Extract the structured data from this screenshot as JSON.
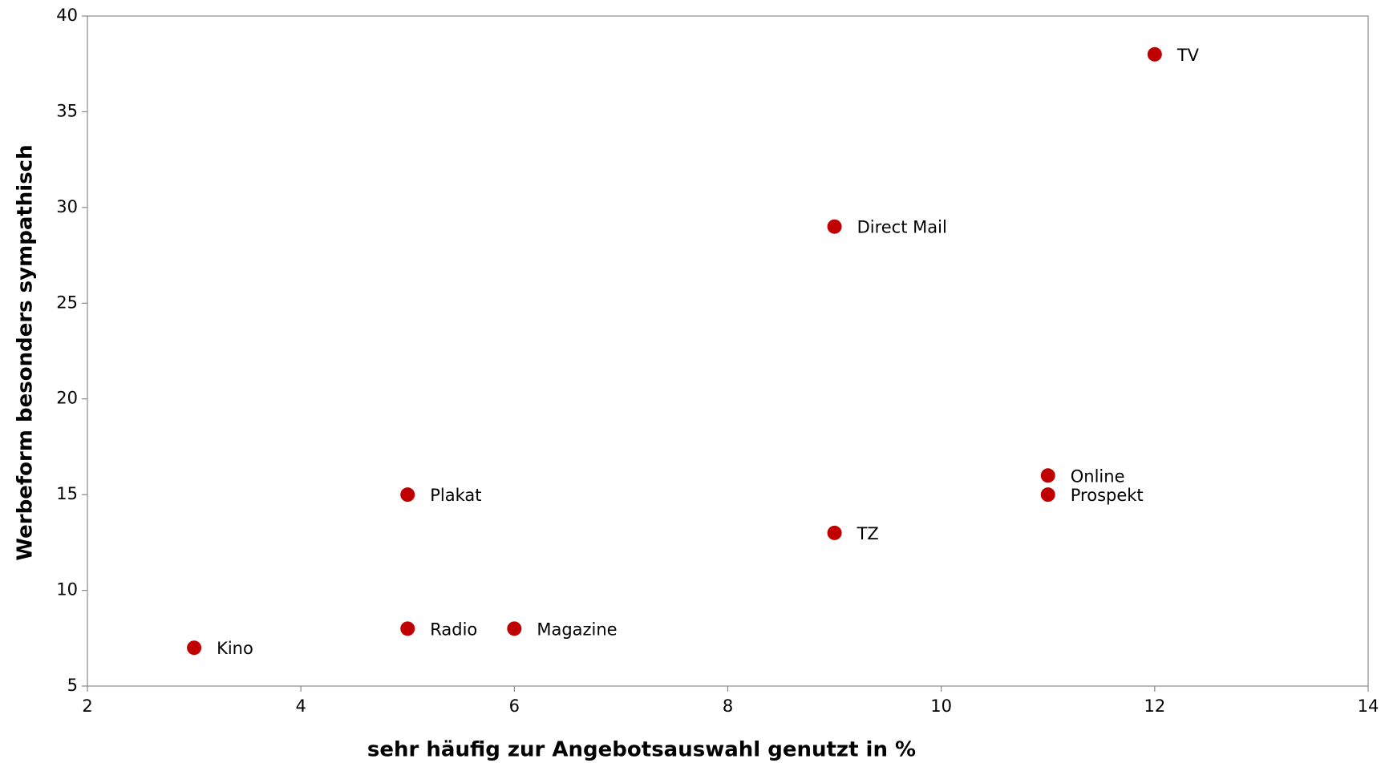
{
  "chart_data": {
    "type": "scatter",
    "x_label": "sehr häufig zur Angebotsauswahl genutzt in %",
    "y_label": "Werbeform besonders sympathisch",
    "labels": [
      "TV",
      "Direct Mail",
      "Online",
      "Prospekt",
      "Plakat",
      "TZ",
      "Radio",
      "Magazine",
      "Kino"
    ],
    "x": [
      12,
      9,
      11,
      11,
      5,
      9,
      5,
      6,
      3
    ],
    "y": [
      38,
      29,
      16,
      15,
      15,
      13,
      8,
      8,
      7
    ],
    "color": "#c00000",
    "xlim": [
      2,
      14
    ],
    "xticks": [
      2,
      4,
      6,
      8,
      10,
      12,
      14
    ],
    "ylim": [
      5,
      40
    ],
    "yticks": [
      5,
      10,
      15,
      20,
      25,
      30,
      35,
      40
    ],
    "grid": false
  }
}
